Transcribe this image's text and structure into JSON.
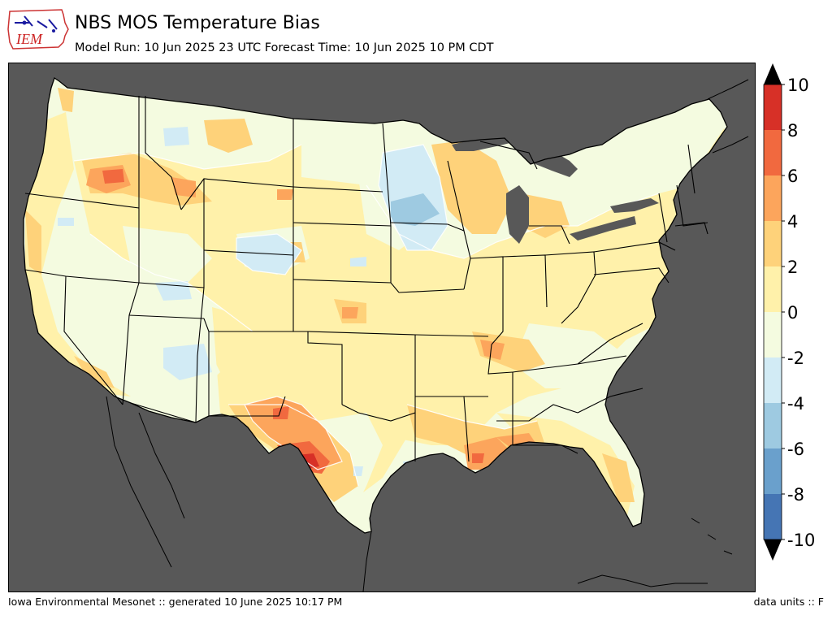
{
  "header": {
    "logo_text": "IEM",
    "title": "NBS MOS Temperature Bias",
    "subtitle": "Model Run: 10 Jun 2025 23 UTC Forecast Time: 10 Jun 2025 10 PM CDT"
  },
  "colorbar": {
    "levels": [
      -10,
      -8,
      -6,
      -4,
      -2,
      0,
      2,
      4,
      6,
      8,
      10
    ],
    "tick_labels": [
      "10",
      "8",
      "6",
      "4",
      "2",
      "0",
      "-2",
      "-4",
      "-6",
      "-8",
      "-10"
    ],
    "colors": [
      "#4575b4",
      "#6aa0cc",
      "#9ecae1",
      "#d2ebf5",
      "#f4fbe0",
      "#fff1aa",
      "#fed27a",
      "#fca55c",
      "#f1693f",
      "#d73027"
    ],
    "extend": "both",
    "over_color": "#000000",
    "under_color": "#000000"
  },
  "map": {
    "background_color": "#585858",
    "domain": "CONUS",
    "base_color": "#f4fbe0",
    "border_color": "#000000"
  },
  "footer": {
    "left": "Iowa Environmental Mesonet :: generated 10 June 2025 10:17 PM",
    "right": "data units :: F"
  }
}
